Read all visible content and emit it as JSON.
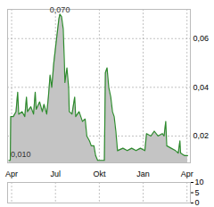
{
  "chart_data": [
    {
      "type": "area",
      "color": "#2e8b2e",
      "x": [
        -0.8,
        -0.4,
        -0.26,
        0.5,
        1.3,
        1.8,
        2.1,
        3.1,
        3.9,
        4.4,
        4.7,
        5.7,
        6.5,
        7.0,
        7.3,
        8.3,
        9.1,
        9.6,
        10.4,
        10.9,
        11.4,
        11.9,
        12.5,
        13.0,
        13.5,
        14.0,
        14.3,
        14.8,
        15.3,
        15.6,
        15.8,
        16.4,
        16.9,
        17.1,
        17.9,
        18.7,
        19.0,
        20.0,
        21.0,
        21.8,
        22.3,
        23.1,
        23.6,
        24.4,
        24.9,
        25.5,
        27.5,
        27.8,
        28.3,
        28.8,
        29.4,
        29.9,
        30.4,
        30.9,
        31.4,
        33.0,
        34.3,
        35.6,
        36.9,
        38.2,
        39.5,
        40.0,
        41.3,
        42.3,
        43.4,
        44.7,
        45.2,
        45.7,
        46.0,
        47.3,
        48.6,
        49.4,
        49.9,
        50.1,
        51.2,
        52.2
      ],
      "values": [
        0.01,
        0.01,
        0.028,
        0.028,
        0.03,
        0.038,
        0.029,
        0.03,
        0.028,
        0.036,
        0.03,
        0.032,
        0.029,
        0.038,
        0.031,
        0.034,
        0.03,
        0.033,
        0.029,
        0.036,
        0.045,
        0.04,
        0.05,
        0.056,
        0.062,
        0.068,
        0.07,
        0.069,
        0.064,
        0.052,
        0.042,
        0.048,
        0.04,
        0.03,
        0.029,
        0.036,
        0.028,
        0.03,
        0.026,
        0.027,
        0.02,
        0.018,
        0.016,
        0.016,
        0.012,
        0.01,
        0.01,
        0.046,
        0.048,
        0.04,
        0.036,
        0.03,
        0.028,
        0.022,
        0.014,
        0.015,
        0.014,
        0.015,
        0.014,
        0.015,
        0.014,
        0.021,
        0.02,
        0.022,
        0.02,
        0.021,
        0.02,
        0.026,
        0.016,
        0.015,
        0.014,
        0.013,
        0.018,
        0.013,
        0.012,
        0.012
      ],
      "xlim": [
        -1.2,
        53
      ],
      "xticks": [
        {
          "value": 0,
          "label": "Apr"
        },
        {
          "value": 13,
          "label": "Jul"
        },
        {
          "value": 26,
          "label": "Okt"
        },
        {
          "value": 39,
          "label": "Jan"
        },
        {
          "value": 52,
          "label": "Apr"
        }
      ],
      "ylim": [
        0.009,
        0.072
      ],
      "yticks": [
        {
          "value": 0.02,
          "label": "0,02"
        },
        {
          "value": 0.04,
          "label": "0,04"
        },
        {
          "value": 0.06,
          "label": "0,06"
        }
      ],
      "grid": true,
      "annotations": [
        {
          "text": "0,070",
          "x": 14.3,
          "y": 0.07
        },
        {
          "text": "0,010",
          "x": -0.8,
          "y": 0.01
        }
      ]
    },
    {
      "type": "bar",
      "x": [],
      "values": [],
      "xlim": [
        -1.2,
        53
      ],
      "xticks": [
        0,
        13,
        26,
        39,
        52
      ],
      "ylim": [
        0,
        10
      ],
      "yticks": [
        0,
        5,
        10
      ],
      "grid": true,
      "tick_labels": "y"
    }
  ]
}
